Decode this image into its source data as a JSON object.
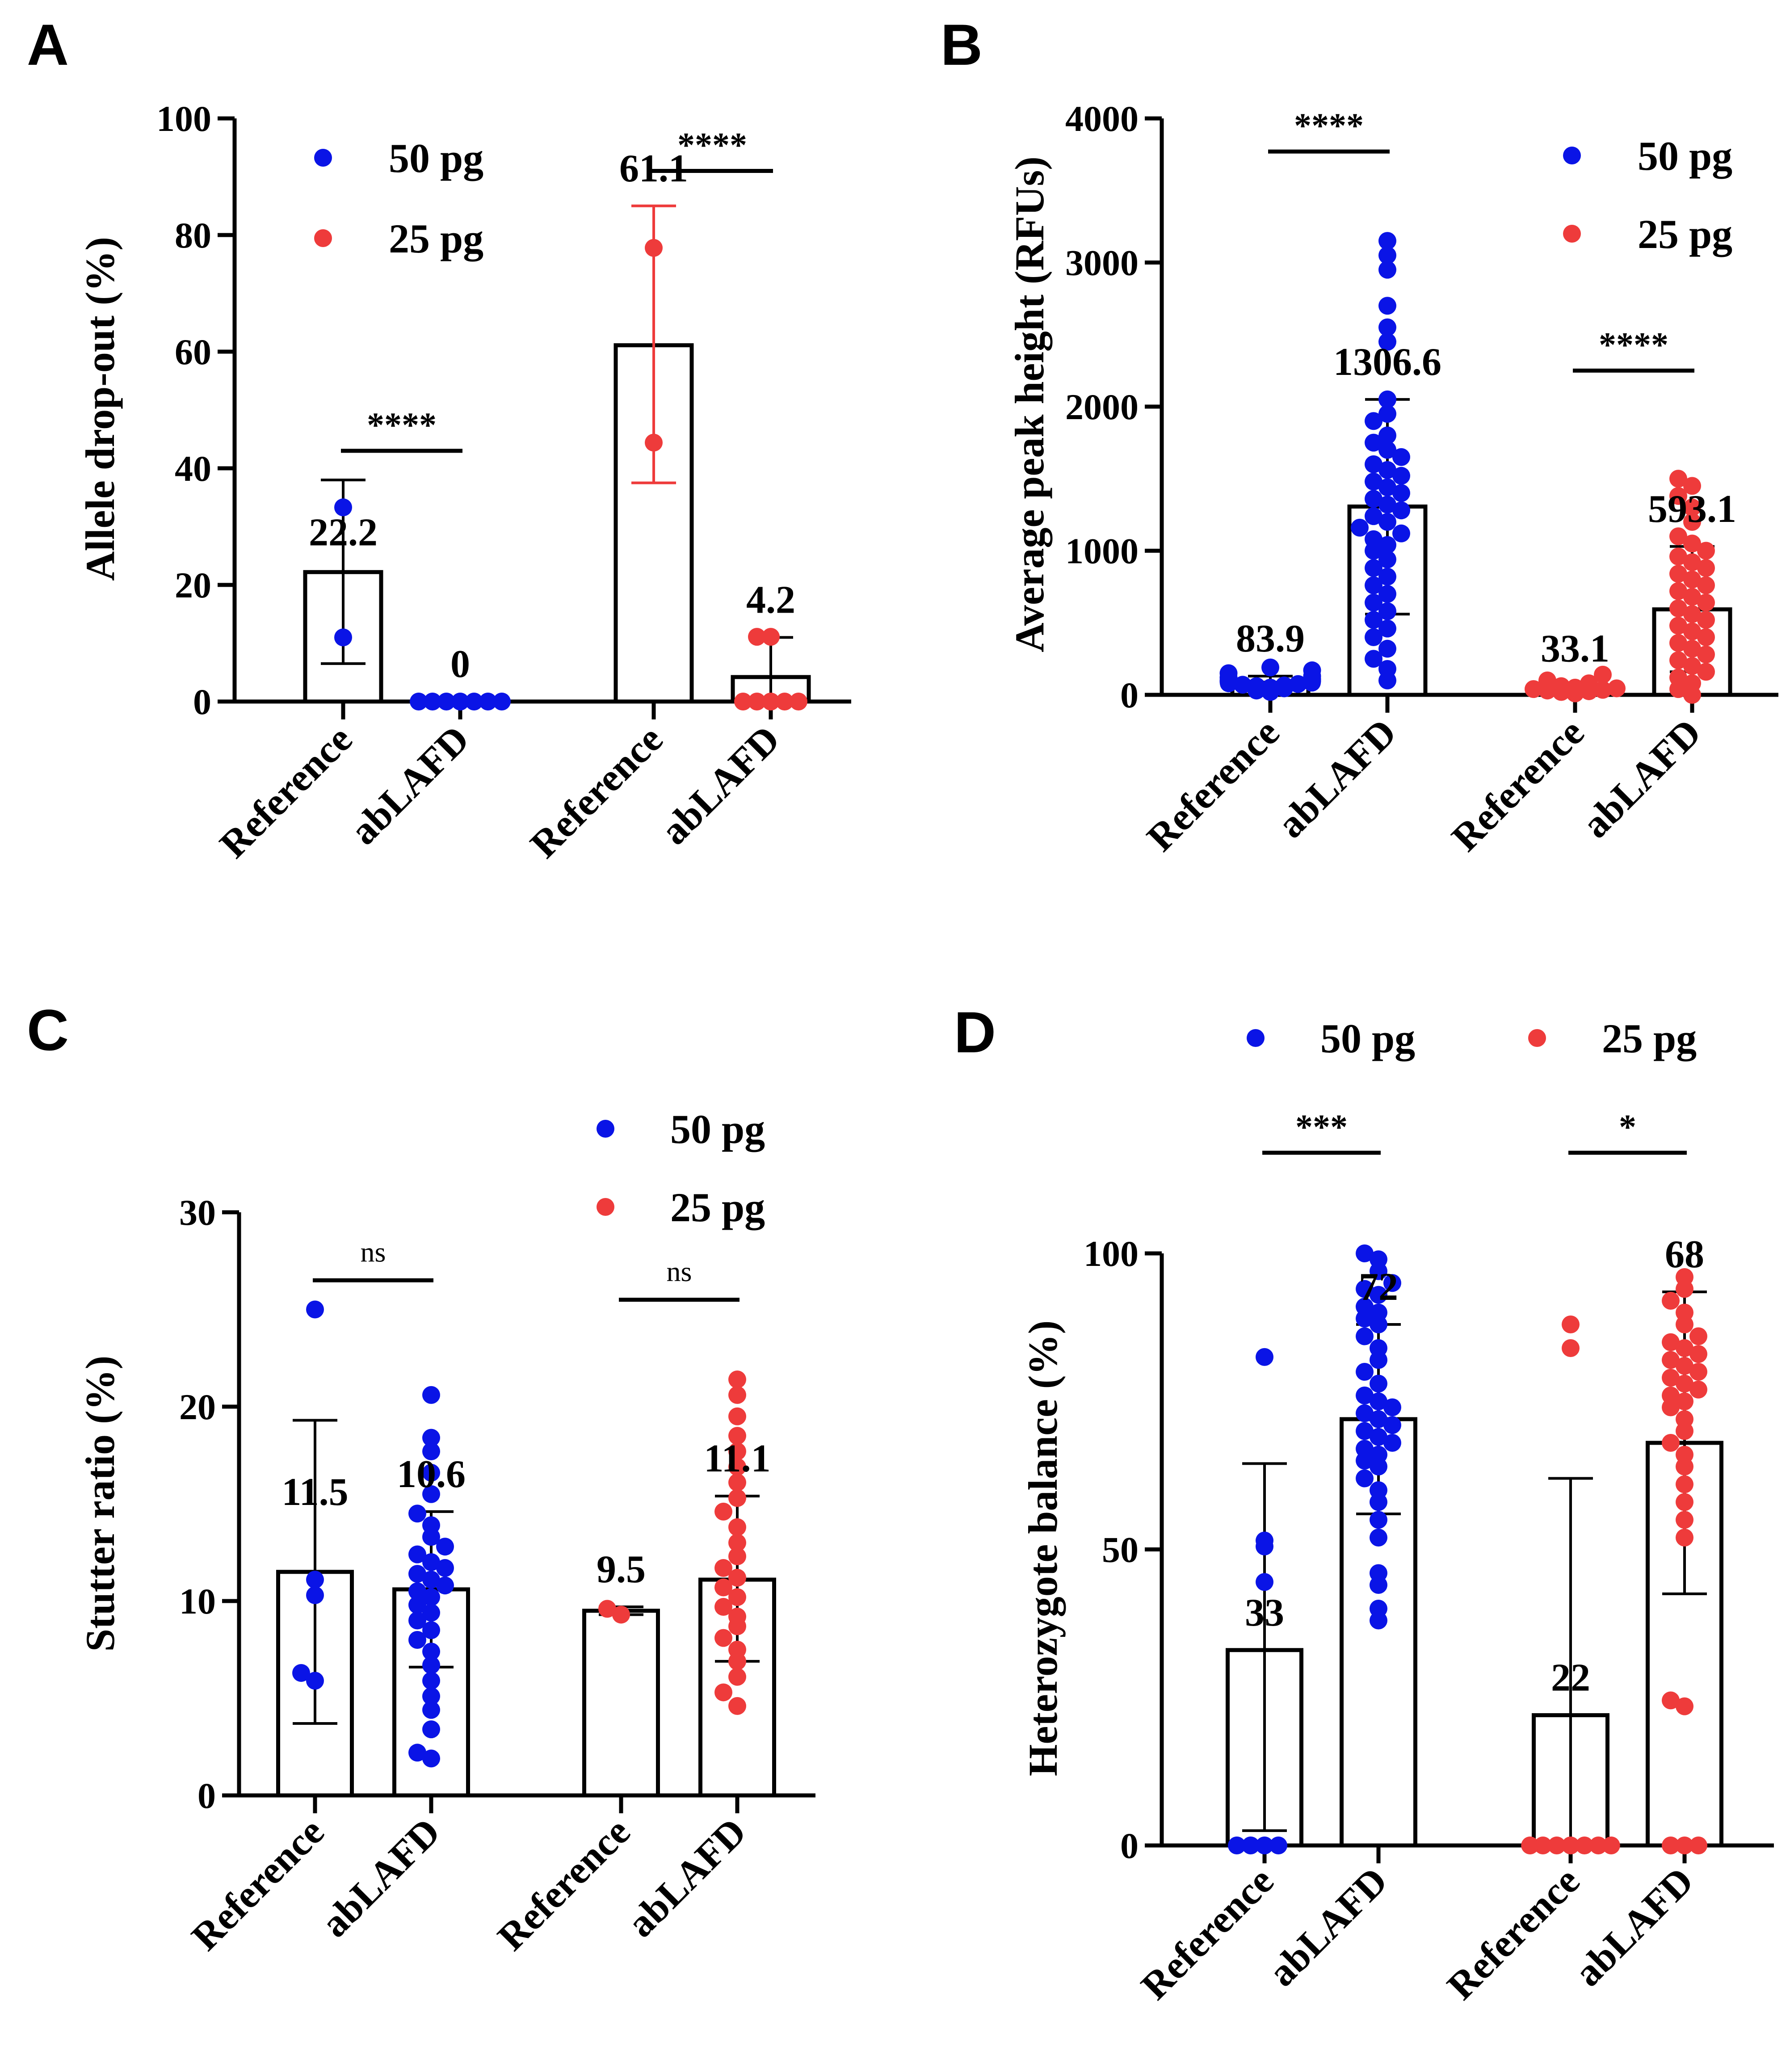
{
  "chart_data": [
    {
      "type": "bar",
      "panel": "A",
      "title": "",
      "xlabel": "",
      "ylabel": "Allele drop-out (%)",
      "ylim": [
        0,
        100
      ],
      "yticks": [
        0,
        20,
        40,
        60,
        80,
        100
      ],
      "categories": [
        "Reference",
        "abLAFD",
        "Reference",
        "abLAFD"
      ],
      "bars": [
        {
          "category": "Reference",
          "group": "50 pg",
          "value": 22.2,
          "label": "22.2",
          "err_low": 6.5,
          "err_high": 38,
          "points": [
            11,
            33.3
          ]
        },
        {
          "category": "abLAFD",
          "group": "50 pg",
          "value": 0,
          "label": "0",
          "err_low": 0,
          "err_high": 0,
          "points": [
            0,
            0,
            0,
            0,
            0,
            0,
            0
          ]
        },
        {
          "category": "Reference",
          "group": "25 pg",
          "value": 61.1,
          "label": "61.1",
          "err_low": 37.5,
          "err_high": 85,
          "points": [
            44.4,
            77.8
          ]
        },
        {
          "category": "abLAFD",
          "group": "25 pg",
          "value": 4.2,
          "label": "4.2",
          "err_low": 0,
          "err_high": 11,
          "points": [
            0,
            0,
            0,
            0,
            0,
            11.1,
            11.1
          ]
        }
      ],
      "comparisons": [
        {
          "between": [
            0,
            1
          ],
          "text": "****",
          "y": 43
        },
        {
          "between": [
            2,
            3
          ],
          "text": "****",
          "y": 91
        }
      ],
      "legend": [
        {
          "label": "50 pg",
          "color": "#0a14e6"
        },
        {
          "label": "25 pg",
          "color": "#ee3b3b"
        }
      ],
      "legend_position": "top-left"
    },
    {
      "type": "bar",
      "panel": "B",
      "title": "",
      "xlabel": "",
      "ylabel": "Average peak height (RFUs)",
      "ylim": [
        0,
        4000
      ],
      "yticks": [
        0,
        1000,
        2000,
        3000,
        4000
      ],
      "categories": [
        "Reference",
        "abLAFD",
        "Reference",
        "abLAFD"
      ],
      "bars": [
        {
          "category": "Reference",
          "group": "50 pg",
          "value": 83.9,
          "label": "83.9",
          "err_low": 40,
          "err_high": 130,
          "points": [
            20,
            30,
            45,
            50,
            60,
            65,
            70,
            75,
            80,
            85,
            90,
            95,
            100,
            110,
            120,
            130,
            150,
            170,
            190
          ]
        },
        {
          "category": "abLAFD",
          "group": "50 pg",
          "value": 1306.6,
          "label": "1306.6",
          "err_low": 560,
          "err_high": 2050,
          "points": [
            100,
            180,
            250,
            320,
            400,
            460,
            520,
            580,
            640,
            700,
            760,
            820,
            880,
            940,
            1000,
            1040,
            1080,
            1120,
            1160,
            1200,
            1240,
            1280,
            1320,
            1360,
            1400,
            1440,
            1480,
            1520,
            1560,
            1600,
            1650,
            1700,
            1750,
            1800,
            1900,
            1950,
            2050,
            2450,
            2550,
            2700,
            2950,
            3050,
            3150
          ]
        },
        {
          "category": "Reference",
          "group": "25 pg",
          "value": 33.1,
          "label": "33.1",
          "err_low": 10,
          "err_high": 60,
          "points": [
            10,
            20,
            25,
            30,
            35,
            40,
            45,
            50,
            60,
            80,
            100,
            140
          ]
        },
        {
          "category": "abLAFD",
          "group": "25 pg",
          "value": 593.1,
          "label": "593.1",
          "err_low": 160,
          "err_high": 1030,
          "points": [
            0,
            40,
            80,
            120,
            160,
            200,
            240,
            280,
            320,
            360,
            400,
            440,
            480,
            520,
            560,
            600,
            640,
            680,
            720,
            760,
            800,
            840,
            880,
            920,
            960,
            1000,
            1050,
            1100,
            1200,
            1300,
            1380,
            1450,
            1500
          ]
        }
      ],
      "comparisons": [
        {
          "between": [
            0,
            1
          ],
          "text": "****",
          "y": 3770
        },
        {
          "between": [
            2,
            3
          ],
          "text": "****",
          "y": 2250
        }
      ],
      "legend": [
        {
          "label": "50 pg",
          "color": "#0a14e6"
        },
        {
          "label": "25 pg",
          "color": "#ee3b3b"
        }
      ],
      "legend_position": "top-right"
    },
    {
      "type": "bar",
      "panel": "C",
      "title": "",
      "xlabel": "",
      "ylabel": "Stutter ratio (%)",
      "ylim": [
        0,
        30
      ],
      "yticks": [
        0,
        10,
        20,
        30
      ],
      "categories": [
        "Reference",
        "abLAFD",
        "Reference",
        "abLAFD"
      ],
      "bars": [
        {
          "category": "Reference",
          "group": "50 pg",
          "value": 11.5,
          "label": "11.5",
          "err_low": 3.7,
          "err_high": 19.3,
          "points": [
            5.9,
            6.3,
            10.3,
            11.1,
            25
          ]
        },
        {
          "category": "abLAFD",
          "group": "50 pg",
          "value": 10.6,
          "label": "10.6",
          "err_low": 6.6,
          "err_high": 14.6,
          "points": [
            1.9,
            2.2,
            3.4,
            4.4,
            5.1,
            5.9,
            6.7,
            7.4,
            8.0,
            8.5,
            9.0,
            9.4,
            9.8,
            10.2,
            10.5,
            10.8,
            11.1,
            11.4,
            11.7,
            12.0,
            12.4,
            12.8,
            13.3,
            13.9,
            14.5,
            15.5,
            16.6,
            17.7,
            18.4,
            20.6
          ]
        },
        {
          "category": "Reference",
          "group": "25 pg",
          "value": 9.5,
          "label": "9.5",
          "err_low": 9.3,
          "err_high": 9.7,
          "points": [
            9.3,
            9.6
          ]
        },
        {
          "category": "abLAFD",
          "group": "25 pg",
          "value": 11.1,
          "label": "11.1",
          "err_low": 6.9,
          "err_high": 15.4,
          "points": [
            4.6,
            5.3,
            6.1,
            6.9,
            7.5,
            8.1,
            8.7,
            9.2,
            9.7,
            10.2,
            10.7,
            11.2,
            11.7,
            12.3,
            13.0,
            13.8,
            14.6,
            15.3,
            16.1,
            16.9,
            17.7,
            18.5,
            19.5,
            20.6,
            21.4
          ]
        }
      ],
      "comparisons": [
        {
          "between": [
            0,
            1
          ],
          "text": "ns",
          "y": 26.5
        },
        {
          "between": [
            2,
            3
          ],
          "text": "ns",
          "y": 25.5
        }
      ],
      "legend": [
        {
          "label": "50 pg",
          "color": "#0a14e6"
        },
        {
          "label": "25 pg",
          "color": "#ee3b3b"
        }
      ],
      "legend_position": "top-right"
    },
    {
      "type": "bar",
      "panel": "D",
      "title": "",
      "xlabel": "",
      "ylabel": "Heterozygote balance (%)",
      "ylim": [
        0,
        100
      ],
      "yticks": [
        0,
        50,
        100
      ],
      "categories": [
        "Reference",
        "abLAFD",
        "Reference",
        "abLAFD"
      ],
      "bars": [
        {
          "category": "Reference",
          "group": "50 pg",
          "value": 33,
          "label": "33",
          "err_low": 2.5,
          "err_high": 64.5,
          "points": [
            0,
            0,
            0,
            0,
            44.5,
            50.5,
            51.5,
            82.5
          ]
        },
        {
          "category": "abLAFD",
          "group": "50 pg",
          "value": 72,
          "label": "72",
          "err_low": 56,
          "err_high": 88,
          "points": [
            38,
            40,
            44,
            46,
            52,
            55,
            58,
            60,
            62,
            64,
            65,
            66,
            67,
            68,
            69,
            70,
            71,
            72,
            73,
            74,
            75,
            76,
            78,
            80,
            82,
            84,
            86,
            88,
            89,
            90,
            91,
            93,
            94,
            95,
            97,
            99,
            100
          ]
        },
        {
          "category": "Reference",
          "group": "25 pg",
          "value": 22,
          "label": "22",
          "err_low": 0,
          "err_high": 62,
          "points": [
            0,
            0,
            0,
            0,
            0,
            0,
            0,
            84,
            88
          ]
        },
        {
          "category": "abLAFD",
          "group": "25 pg",
          "value": 68,
          "label": "68",
          "err_low": 42.5,
          "err_high": 93.5,
          "points": [
            0,
            0,
            0,
            23.5,
            24.5,
            52,
            55,
            58,
            61,
            64,
            66,
            68,
            70,
            72,
            74,
            75,
            76,
            77,
            78,
            79,
            80,
            81,
            82,
            83,
            84,
            85,
            86,
            88,
            90,
            92,
            94,
            96
          ]
        }
      ],
      "comparisons": [
        {
          "between": [
            0,
            1
          ],
          "text": "***",
          "y": 117
        },
        {
          "between": [
            2,
            3
          ],
          "text": "*",
          "y": 117
        }
      ],
      "legend": [
        {
          "label": "50 pg",
          "color": "#0a14e6"
        },
        {
          "label": "25 pg",
          "color": "#ee3b3b"
        }
      ],
      "legend_position": "top"
    }
  ]
}
